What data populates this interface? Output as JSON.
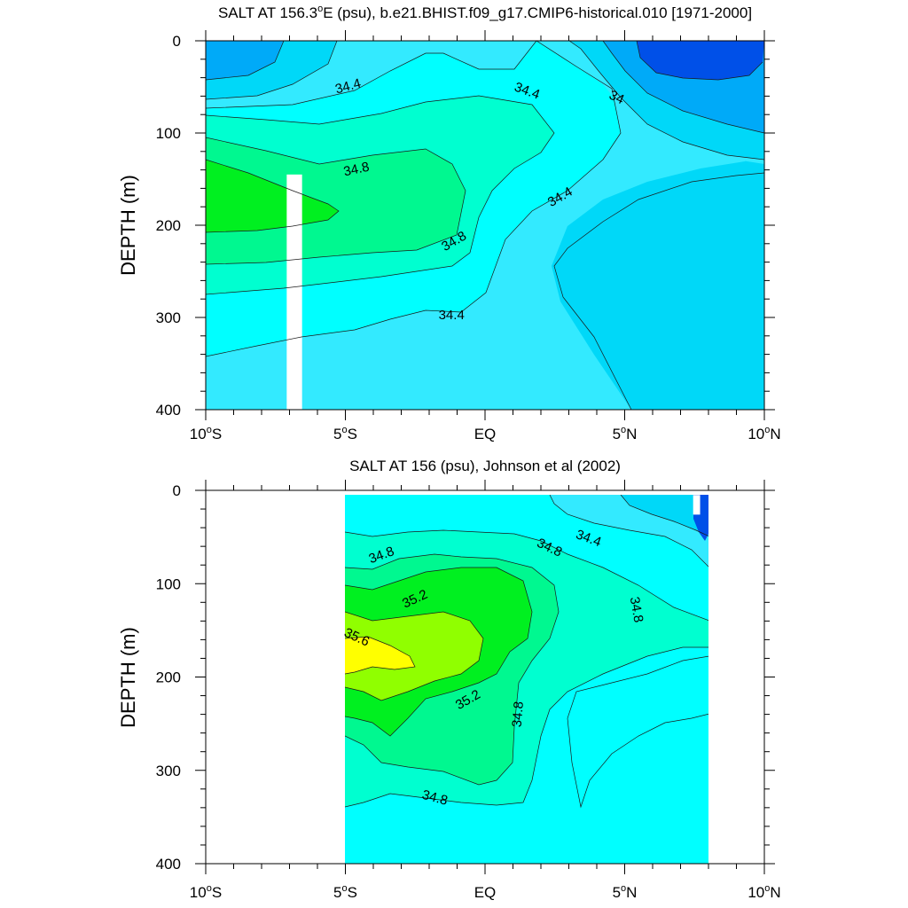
{
  "chart_data": [
    {
      "type": "contour",
      "title": "SALT AT 156.3°E (psu), b.e21.BHIST.f09_g17.CMIP6-historical.010 [1971-2000]",
      "title_parts": {
        "pre": "SALT AT 156.3",
        "sup": "o",
        "post": "E (psu), b.e21.BHIST.f09_g17.CMIP6-historical.010 [1971-2000]"
      },
      "ylabel": "DEPTH (m)",
      "xlim": [
        -10,
        10
      ],
      "ylim": [
        0,
        400
      ],
      "y_inverted": true,
      "x_ticks": [
        {
          "value": -10,
          "num": "10",
          "sup": "o",
          "hemi": "S"
        },
        {
          "value": -5,
          "num": "5",
          "sup": "o",
          "hemi": "S"
        },
        {
          "value": 0,
          "num": "EQ",
          "sup": "",
          "hemi": ""
        },
        {
          "value": 5,
          "num": "5",
          "sup": "o",
          "hemi": "N"
        },
        {
          "value": 10,
          "num": "10",
          "sup": "o",
          "hemi": "N"
        }
      ],
      "y_ticks": [
        "0",
        "100",
        "200",
        "300",
        "400"
      ],
      "y_tick_values": [
        0,
        100,
        200,
        300,
        400
      ],
      "colors": {
        "c33_8": "#0050e8",
        "c34_0": "#00aaf8",
        "c34_2": "#00d8f8",
        "c34_4": "#33eaff",
        "c34_6": "#00ffff",
        "c34_8": "#00ffd0",
        "c35_0": "#00f890",
        "c35_2": "#00f020"
      },
      "contour_labels": [
        {
          "text": "34.4",
          "lat": -4.9,
          "depth": 50,
          "angle": -15
        },
        {
          "text": "34.4",
          "lat": 1.5,
          "depth": 55,
          "angle": 20
        },
        {
          "text": "34",
          "lat": 4.7,
          "depth": 62,
          "angle": 25
        },
        {
          "text": "34.8",
          "lat": -4.6,
          "depth": 140,
          "angle": -12
        },
        {
          "text": "34.4",
          "lat": 2.7,
          "depth": 170,
          "angle": -30
        },
        {
          "text": "34.8",
          "lat": -1.1,
          "depth": 218,
          "angle": -30
        },
        {
          "text": "34.4",
          "lat": -1.2,
          "depth": 298,
          "angle": 0
        }
      ],
      "missing_data": [
        {
          "lat_min": -7.1,
          "lat_max": -6.55,
          "depth_min": 145,
          "depth_max": 400
        }
      ]
    },
    {
      "type": "contour",
      "title": "SALT AT 156 (psu), Johnson et al (2002)",
      "ylabel": "DEPTH (m)",
      "xlim": [
        -10,
        10
      ],
      "ylim": [
        0,
        400
      ],
      "y_inverted": true,
      "x_ticks": [
        {
          "value": -10,
          "num": "10",
          "sup": "o",
          "hemi": "S"
        },
        {
          "value": -5,
          "num": "5",
          "sup": "o",
          "hemi": "S"
        },
        {
          "value": 0,
          "num": "EQ",
          "sup": "",
          "hemi": ""
        },
        {
          "value": 5,
          "num": "5",
          "sup": "o",
          "hemi": "N"
        },
        {
          "value": 10,
          "num": "10",
          "sup": "o",
          "hemi": "N"
        }
      ],
      "y_ticks": [
        "0",
        "100",
        "200",
        "300",
        "400"
      ],
      "y_tick_values": [
        0,
        100,
        200,
        300,
        400
      ],
      "data_extent": {
        "lat_min": -5,
        "lat_max": 8,
        "depth_min": 5,
        "depth_max": 400
      },
      "colors": {
        "c34_2": "#00d8f8",
        "c34_4": "#33eaff",
        "c34_6": "#00ffff",
        "c34_8": "#00ffd0",
        "c35_0": "#00f890",
        "c35_2": "#00f020",
        "c35_4": "#90ff00",
        "c35_6": "#ffff00",
        "c33_8": "#0050e8"
      },
      "contour_labels": [
        {
          "text": "34.8",
          "lat": -3.7,
          "depth": 70,
          "angle": -20
        },
        {
          "text": "34.8",
          "lat": 2.3,
          "depth": 62,
          "angle": 25
        },
        {
          "text": "34.4",
          "lat": 3.7,
          "depth": 52,
          "angle": 20
        },
        {
          "text": "35.2",
          "lat": -2.5,
          "depth": 117,
          "angle": -25
        },
        {
          "text": "34.8",
          "lat": 5.4,
          "depth": 128,
          "angle": 80
        },
        {
          "text": "35.6",
          "lat": -4.6,
          "depth": 158,
          "angle": 25
        },
        {
          "text": "35.2",
          "lat": -0.6,
          "depth": 225,
          "angle": -30
        },
        {
          "text": "34.8",
          "lat": 1.2,
          "depth": 240,
          "angle": -85
        },
        {
          "text": "34.8",
          "lat": -1.8,
          "depth": 330,
          "angle": 15
        }
      ],
      "missing_data": [
        {
          "lat_min": 7.45,
          "lat_max": 7.7,
          "depth_min": 5,
          "depth_max": 26
        }
      ]
    }
  ]
}
